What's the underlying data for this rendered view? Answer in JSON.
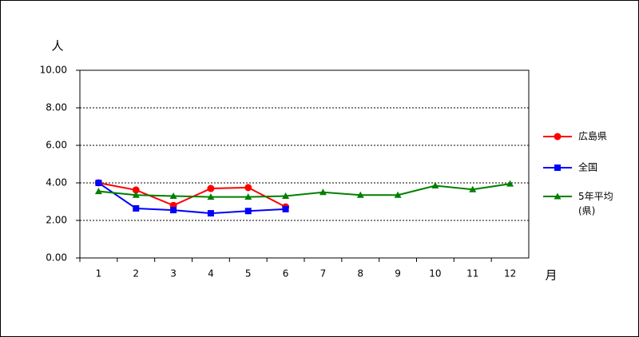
{
  "chart_data": {
    "type": "line",
    "y_label": "人",
    "x_label": "月",
    "categories": [
      "1",
      "2",
      "3",
      "4",
      "5",
      "6",
      "7",
      "8",
      "9",
      "10",
      "11",
      "12"
    ],
    "series": [
      {
        "name": "広島県",
        "color": "#ff0000",
        "marker": "circle",
        "values": [
          4.0,
          3.62,
          2.8,
          3.7,
          3.75,
          2.72,
          null,
          null,
          null,
          null,
          null,
          null
        ]
      },
      {
        "name": "全国",
        "color": "#0000ff",
        "marker": "square",
        "values": [
          4.0,
          2.64,
          2.55,
          2.38,
          2.5,
          2.6,
          null,
          null,
          null,
          null,
          null,
          null
        ]
      },
      {
        "name": "5年平均(県)",
        "color": "#008000",
        "marker": "triangle",
        "values": [
          3.55,
          3.35,
          3.3,
          3.25,
          3.25,
          3.3,
          3.5,
          3.35,
          3.35,
          3.85,
          3.65,
          3.95
        ]
      }
    ],
    "ylim": [
      0,
      10
    ],
    "yticks": [
      {
        "value": 0,
        "label": "0.00"
      },
      {
        "value": 2,
        "label": "2.00"
      },
      {
        "value": 4,
        "label": "4.00"
      },
      {
        "value": 6,
        "label": "6.00"
      },
      {
        "value": 8,
        "label": "8.00"
      },
      {
        "value": 10,
        "label": "10.00"
      }
    ],
    "grid": true,
    "legend": "right"
  }
}
